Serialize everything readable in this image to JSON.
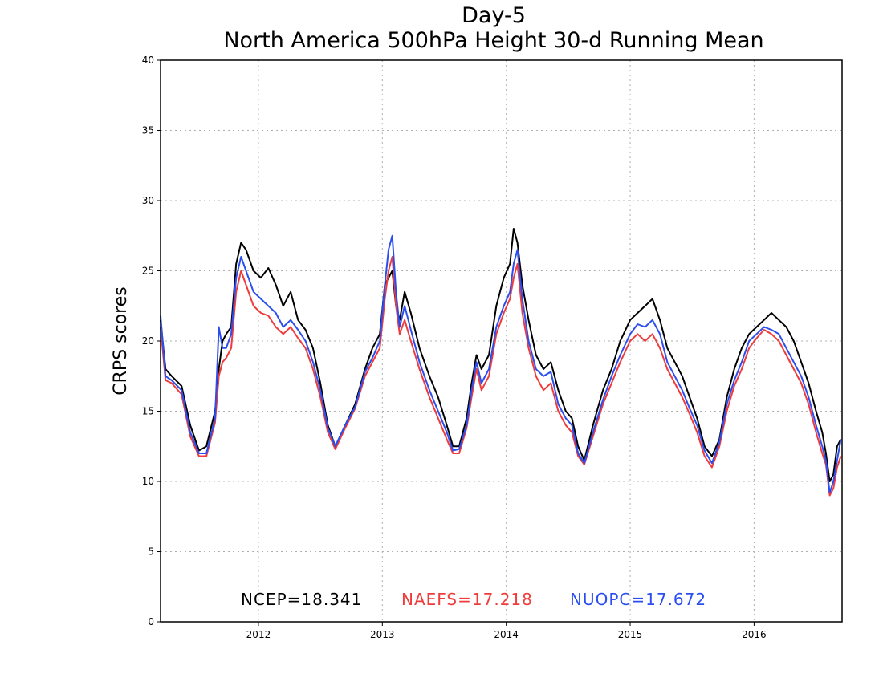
{
  "chart_data": {
    "type": "line",
    "title": "Day-5",
    "subtitle": "North America 500hPa Height 30-d Running Mean",
    "xlabel": "",
    "ylabel": "CRPS scores",
    "ylim": [
      0,
      40
    ],
    "xlim": [
      2011.21,
      2016.71
    ],
    "yticks": [
      "0",
      "5",
      "10",
      "15",
      "20",
      "25",
      "30",
      "35",
      "40"
    ],
    "xticks": [
      "2012",
      "2013",
      "2014",
      "2015",
      "2016"
    ],
    "grid": true,
    "legend_position": "bottom-center",
    "x": [
      2011.21,
      2011.25,
      2011.3,
      2011.38,
      2011.45,
      2011.52,
      2011.58,
      2011.65,
      2011.68,
      2011.71,
      2011.74,
      2011.78,
      2011.82,
      2011.86,
      2011.9,
      2011.96,
      2012.02,
      2012.08,
      2012.14,
      2012.2,
      2012.26,
      2012.32,
      2012.38,
      2012.44,
      2012.5,
      2012.56,
      2012.62,
      2012.7,
      2012.78,
      2012.86,
      2012.92,
      2012.98,
      2013.02,
      2013.05,
      2013.08,
      2013.11,
      2013.14,
      2013.18,
      2013.23,
      2013.3,
      2013.38,
      2013.45,
      2013.52,
      2013.57,
      2013.62,
      2013.68,
      2013.72,
      2013.76,
      2013.8,
      2013.86,
      2013.92,
      2013.98,
      2014.03,
      2014.06,
      2014.09,
      2014.13,
      2014.18,
      2014.24,
      2014.3,
      2014.36,
      2014.42,
      2014.48,
      2014.53,
      2014.58,
      2014.63,
      2014.7,
      2014.78,
      2014.85,
      2014.92,
      2015.0,
      2015.06,
      2015.12,
      2015.18,
      2015.24,
      2015.3,
      2015.36,
      2015.42,
      2015.48,
      2015.54,
      2015.6,
      2015.66,
      2015.72,
      2015.78,
      2015.84,
      2015.9,
      2015.96,
      2016.02,
      2016.08,
      2016.14,
      2016.2,
      2016.26,
      2016.32,
      2016.38,
      2016.44,
      2016.5,
      2016.55,
      2016.58,
      2016.61,
      2016.64,
      2016.67,
      2016.7
    ],
    "series": [
      {
        "name": "NCEP",
        "color": "#000000",
        "legend_label": "NCEP=18.341",
        "values": [
          21.5,
          18.0,
          17.5,
          16.8,
          14.0,
          12.2,
          12.5,
          15.0,
          18.0,
          20.0,
          20.5,
          21.0,
          25.5,
          27.0,
          26.5,
          25.0,
          24.5,
          25.2,
          24.0,
          22.5,
          23.5,
          21.5,
          20.8,
          19.5,
          17.0,
          14.0,
          12.5,
          14.0,
          15.5,
          18.0,
          19.5,
          20.5,
          24.0,
          24.5,
          25.0,
          22.5,
          21.5,
          23.5,
          22.0,
          19.5,
          17.5,
          16.0,
          14.0,
          12.5,
          12.5,
          14.5,
          17.0,
          19.0,
          18.0,
          19.0,
          22.5,
          24.5,
          25.5,
          28.0,
          27.0,
          24.0,
          21.5,
          19.0,
          18.0,
          18.5,
          16.5,
          15.0,
          14.5,
          12.5,
          11.5,
          14.0,
          16.5,
          18.0,
          20.0,
          21.5,
          22.0,
          22.5,
          23.0,
          21.5,
          19.5,
          18.5,
          17.5,
          16.0,
          14.5,
          12.5,
          11.8,
          13.0,
          16.0,
          18.0,
          19.5,
          20.5,
          21.0,
          21.5,
          22.0,
          21.5,
          21.0,
          20.0,
          18.5,
          17.0,
          15.0,
          13.5,
          12.0,
          10.0,
          10.5,
          12.5,
          13.0
        ]
      },
      {
        "name": "NAEFS",
        "color": "#ef3b3b",
        "legend_label": "NAEFS=17.218",
        "values": [
          21.0,
          17.2,
          17.0,
          16.2,
          13.2,
          11.8,
          11.8,
          14.2,
          17.5,
          18.5,
          18.8,
          19.5,
          23.5,
          25.0,
          24.0,
          22.5,
          22.0,
          21.8,
          21.0,
          20.5,
          21.0,
          20.2,
          19.5,
          18.0,
          16.0,
          13.5,
          12.3,
          13.8,
          15.2,
          17.5,
          18.5,
          19.5,
          23.0,
          25.0,
          26.0,
          22.5,
          20.5,
          21.5,
          20.0,
          18.0,
          16.0,
          14.5,
          13.0,
          12.0,
          12.0,
          13.8,
          16.0,
          18.0,
          16.5,
          17.5,
          20.5,
          22.0,
          23.0,
          24.5,
          25.5,
          22.0,
          19.5,
          17.5,
          16.5,
          17.0,
          15.0,
          14.0,
          13.5,
          11.8,
          11.2,
          13.2,
          15.5,
          17.0,
          18.5,
          20.0,
          20.5,
          20.0,
          20.5,
          19.5,
          18.0,
          17.0,
          16.0,
          14.8,
          13.5,
          11.8,
          11.0,
          12.5,
          15.0,
          16.8,
          18.0,
          19.5,
          20.2,
          20.8,
          20.5,
          20.0,
          19.0,
          18.0,
          17.0,
          15.5,
          13.5,
          12.0,
          11.2,
          9.0,
          9.5,
          11.0,
          11.8
        ]
      },
      {
        "name": "NUOPC",
        "color": "#2b4ef0",
        "legend_label": "NUOPC=17.672",
        "values": [
          21.8,
          17.5,
          17.2,
          16.5,
          13.5,
          12.0,
          12.0,
          14.5,
          21.0,
          19.5,
          19.5,
          20.5,
          24.5,
          26.0,
          25.0,
          23.5,
          23.0,
          22.5,
          22.0,
          21.0,
          21.5,
          20.8,
          20.0,
          18.5,
          16.5,
          13.8,
          12.5,
          14.0,
          15.3,
          17.8,
          18.8,
          20.0,
          24.0,
          26.5,
          27.5,
          23.5,
          21.0,
          22.5,
          20.8,
          18.5,
          16.5,
          15.0,
          13.5,
          12.2,
          12.3,
          14.0,
          16.5,
          18.5,
          17.0,
          18.0,
          21.0,
          22.5,
          23.5,
          25.5,
          26.5,
          23.0,
          20.0,
          18.0,
          17.5,
          17.8,
          15.5,
          14.5,
          14.0,
          12.0,
          11.3,
          13.5,
          15.8,
          17.5,
          19.0,
          20.5,
          21.2,
          21.0,
          21.5,
          20.5,
          18.5,
          17.5,
          16.5,
          15.2,
          14.0,
          12.2,
          11.3,
          12.8,
          15.5,
          17.2,
          18.5,
          20.0,
          20.5,
          21.0,
          20.8,
          20.5,
          19.5,
          18.5,
          17.5,
          16.0,
          14.0,
          12.5,
          11.5,
          9.2,
          10.0,
          11.5,
          13.0
        ]
      }
    ]
  }
}
